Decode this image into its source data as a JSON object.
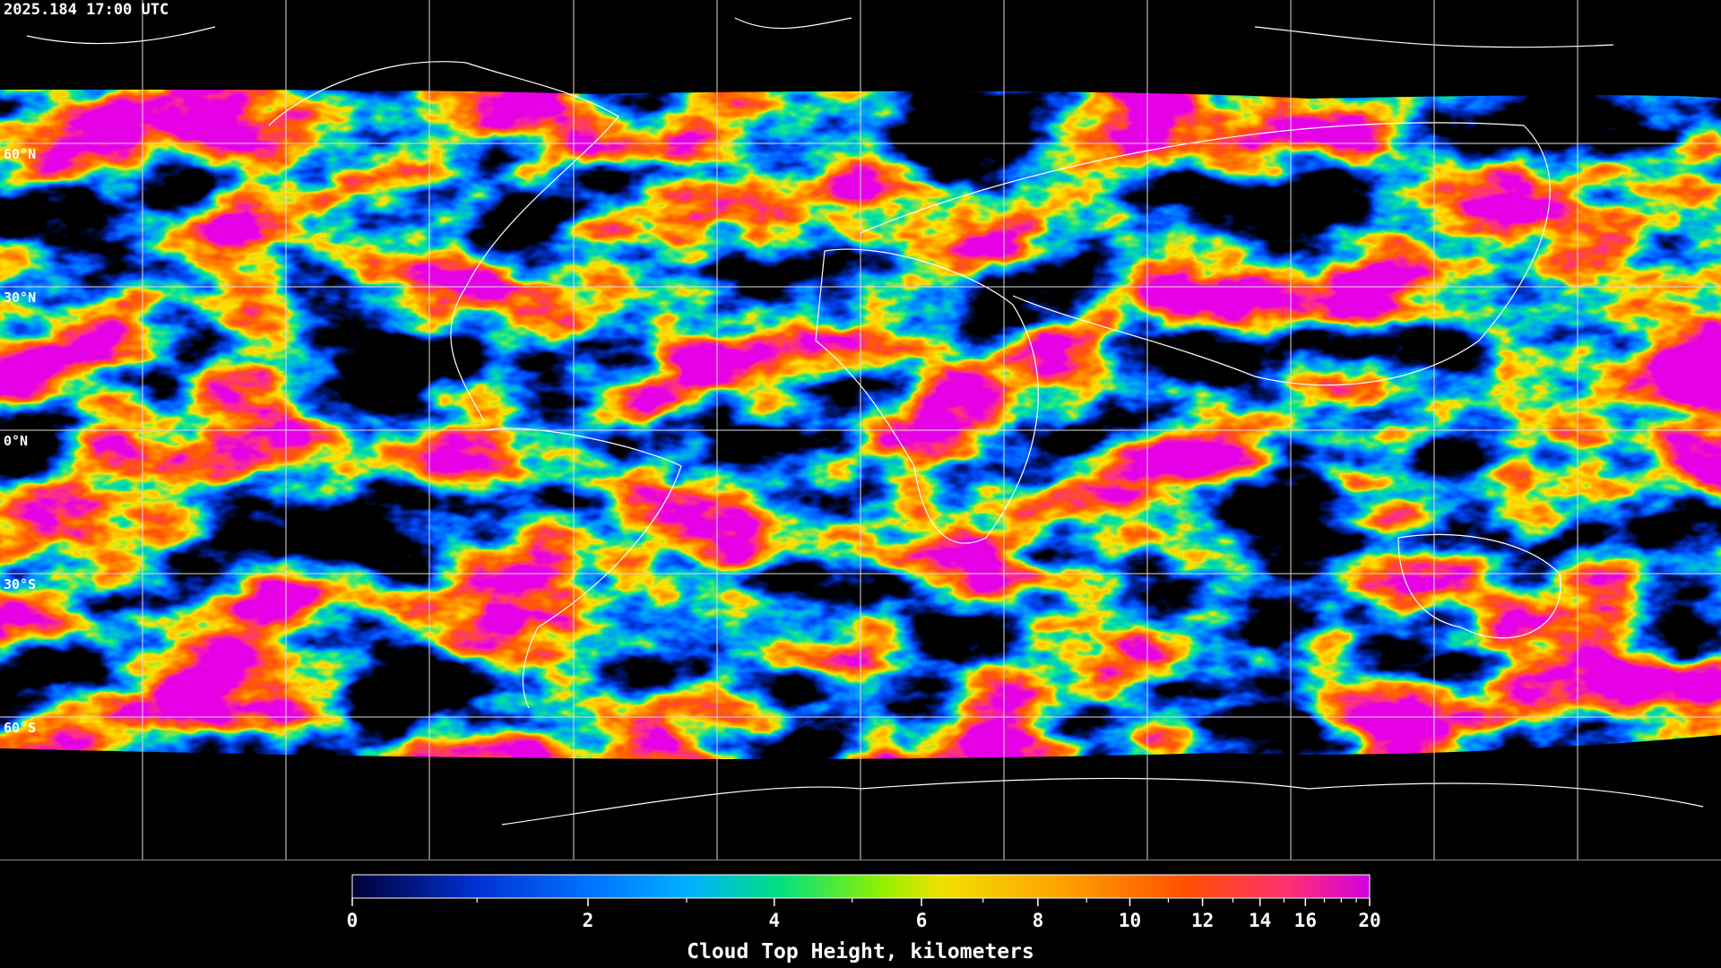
{
  "header": {
    "timestamp": "2025.184 17:00 UTC"
  },
  "latitudes": [
    {
      "value": 60,
      "label": "60°N"
    },
    {
      "value": 30,
      "label": "30°N"
    },
    {
      "value": 0,
      "label": "0°N"
    },
    {
      "value": -30,
      "label": "30°S"
    },
    {
      "value": -60,
      "label": "60°S"
    }
  ],
  "colorbar": {
    "label": "Cloud Top Height, kilometers",
    "range": [
      0,
      20
    ],
    "ticks": [
      0,
      2,
      4,
      6,
      8,
      10,
      12,
      14,
      16,
      20
    ],
    "minor_ticks": [
      1,
      3,
      5,
      7,
      9,
      11,
      13,
      15,
      17,
      18,
      19
    ]
  }
}
